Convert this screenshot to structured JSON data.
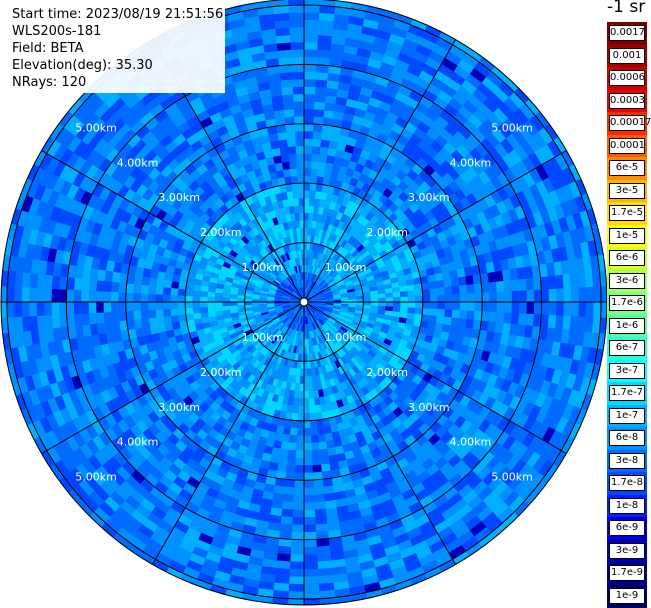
{
  "header": {
    "start_time": "Start time: 2023/08/19 21:51:56",
    "instrument": "WLS200s-181",
    "field": "Field: BETA",
    "elevation": "Elevation(deg): 35.30",
    "nrays": "NRays: 120"
  },
  "colorbar": {
    "title": "-1 sr",
    "levels": [
      {
        "label": "0.0017",
        "color": "#800000"
      },
      {
        "label": "0.001",
        "color": "#a00000"
      },
      {
        "label": "0.0006",
        "color": "#c80000"
      },
      {
        "label": "0.0003",
        "color": "#ee0000"
      },
      {
        "label": "0.00017",
        "color": "#ff2a00"
      },
      {
        "label": "0.0001",
        "color": "#ff5a00"
      },
      {
        "label": "6e-5",
        "color": "#ff8c00"
      },
      {
        "label": "3e-5",
        "color": "#ffb400"
      },
      {
        "label": "1.7e-5",
        "color": "#ffd800"
      },
      {
        "label": "1e-5",
        "color": "#ffff00"
      },
      {
        "label": "6e-6",
        "color": "#d6ff2a"
      },
      {
        "label": "3e-6",
        "color": "#a8ff55"
      },
      {
        "label": "1.7e-6",
        "color": "#7cff7c"
      },
      {
        "label": "1e-6",
        "color": "#55ffa8"
      },
      {
        "label": "6e-7",
        "color": "#2affd6"
      },
      {
        "label": "3e-7",
        "color": "#00ffff"
      },
      {
        "label": "1.7e-7",
        "color": "#00d8ff"
      },
      {
        "label": "1e-7",
        "color": "#00b0ff"
      },
      {
        "label": "6e-8",
        "color": "#0090ff"
      },
      {
        "label": "3e-8",
        "color": "#006cff"
      },
      {
        "label": "1.7e-8",
        "color": "#0048ff"
      },
      {
        "label": "1e-8",
        "color": "#0020ff"
      },
      {
        "label": "6e-9",
        "color": "#0000e0"
      },
      {
        "label": "3e-9",
        "color": "#0000b8"
      },
      {
        "label": "1.7e-9",
        "color": "#00008c"
      },
      {
        "label": "1e-9",
        "color": "#000066"
      }
    ]
  },
  "chart_data": {
    "type": "heatmap",
    "projection": "polar (PPI scan)",
    "field": "BETA",
    "units": "-1 sr",
    "range_rings_km": [
      1,
      2,
      3,
      4,
      5
    ],
    "max_range_km": 5.1,
    "ring_labels": [
      "1.00km",
      "2.00km",
      "3.00km",
      "4.00km",
      "5.00km"
    ],
    "azimuth_spokes_deg": [
      0,
      30,
      60,
      90,
      120,
      150,
      180,
      210,
      240,
      270,
      300,
      330
    ],
    "nrays": 120,
    "value_distribution": [
      {
        "range_km": [
          0.0,
          0.5
        ],
        "typical": "1.7e-8 to 6e-8"
      },
      {
        "range_km": [
          0.5,
          2.0
        ],
        "typical": "1e-7 to 3e-7"
      },
      {
        "range_km": [
          2.0,
          3.0
        ],
        "typical": "3e-8 to 1e-7"
      },
      {
        "range_km": [
          3.0,
          5.1
        ],
        "typical": "1e-8 to 1e-7"
      }
    ],
    "palette": [
      "#00d8ff",
      "#00b0ff",
      "#0090ff",
      "#006cff",
      "#0048ff",
      "#0020ff",
      "#0000b8"
    ]
  }
}
